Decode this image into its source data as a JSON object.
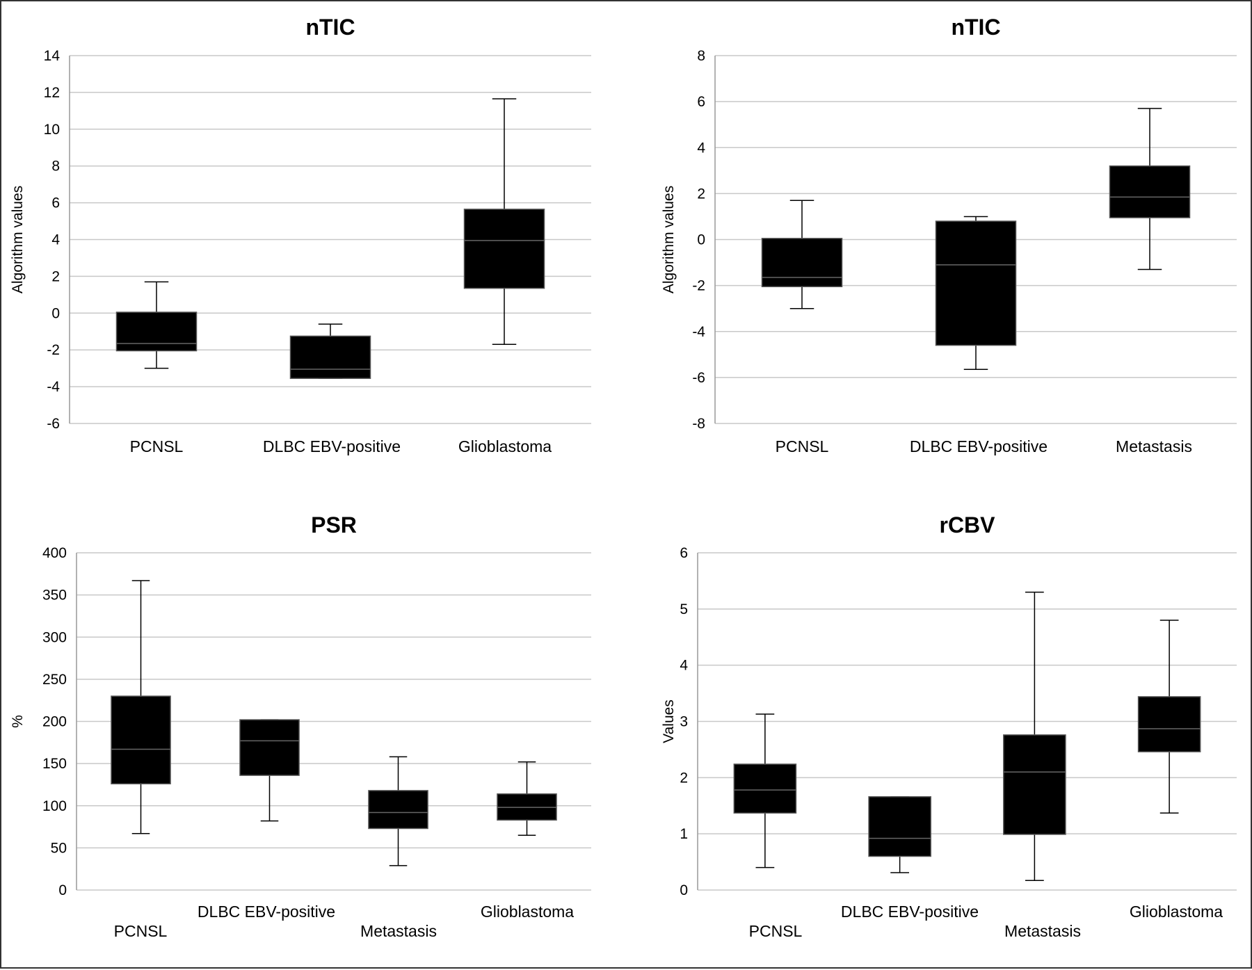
{
  "chart_data": [
    {
      "type": "box",
      "title": "nTIC",
      "ylabel": "Algorithm values",
      "xlabel": "",
      "ylim": [
        -6,
        14
      ],
      "yticks": [
        -6,
        -4,
        -2,
        0,
        2,
        4,
        6,
        8,
        10,
        12,
        14
      ],
      "grid": true,
      "categories": [
        "PCNSL",
        "DLBC EBV-positive",
        "Glioblastoma"
      ],
      "boxes": [
        {
          "min": -3.0,
          "q1": -2.05,
          "median": -1.65,
          "q3": 0.05,
          "max": 1.7
        },
        {
          "min": -3.55,
          "q1": -3.55,
          "median": -3.05,
          "q3": -1.25,
          "max": -0.6
        },
        {
          "min": -1.7,
          "q1": 1.35,
          "median": 3.95,
          "q3": 5.65,
          "max": 11.65
        }
      ]
    },
    {
      "type": "box",
      "title": "nTIC",
      "ylabel": "Algorithm values",
      "xlabel": "",
      "ylim": [
        -8,
        8
      ],
      "yticks": [
        -8,
        -6,
        -4,
        -2,
        0,
        2,
        4,
        6,
        8
      ],
      "grid": true,
      "categories": [
        "PCNSL",
        "DLBC EBV-positive",
        "Metastasis"
      ],
      "boxes": [
        {
          "min": -3.0,
          "q1": -2.05,
          "median": -1.65,
          "q3": 0.05,
          "max": 1.7
        },
        {
          "min": -5.65,
          "q1": -4.6,
          "median": -1.1,
          "q3": 0.8,
          "max": 1.0
        },
        {
          "min": -1.3,
          "q1": 0.95,
          "median": 1.85,
          "q3": 3.2,
          "max": 5.7
        }
      ]
    },
    {
      "type": "box",
      "title": "PSR",
      "ylabel": "%",
      "xlabel": "",
      "ylim": [
        0,
        400
      ],
      "yticks": [
        0,
        50,
        100,
        150,
        200,
        250,
        300,
        350,
        400
      ],
      "grid": true,
      "categories": [
        "PCNSL",
        "DLBC EBV-positive",
        "Metastasis",
        "Glioblastoma"
      ],
      "boxes": [
        {
          "min": 67,
          "q1": 126,
          "median": 167,
          "q3": 230,
          "max": 367
        },
        {
          "min": 82,
          "q1": 136,
          "median": 177,
          "q3": 202,
          "max": 202
        },
        {
          "min": 29,
          "q1": 73,
          "median": 92,
          "q3": 118,
          "max": 158
        },
        {
          "min": 65,
          "q1": 83,
          "median": 98,
          "q3": 114,
          "max": 152
        }
      ]
    },
    {
      "type": "box",
      "title": "rCBV",
      "ylabel": "Values",
      "xlabel": "",
      "ylim": [
        0,
        6
      ],
      "yticks": [
        0,
        1,
        2,
        3,
        4,
        5,
        6
      ],
      "grid": true,
      "categories": [
        "PCNSL",
        "DLBC EBV-positive",
        "Metastasis",
        "Glioblastoma"
      ],
      "boxes": [
        {
          "min": 0.4,
          "q1": 1.37,
          "median": 1.78,
          "q3": 2.24,
          "max": 3.13
        },
        {
          "min": 0.31,
          "q1": 0.6,
          "median": 0.92,
          "q3": 1.66,
          "max": 1.66
        },
        {
          "min": 0.17,
          "q1": 0.99,
          "median": 2.1,
          "q3": 2.76,
          "max": 5.3
        },
        {
          "min": 1.37,
          "q1": 2.46,
          "median": 2.87,
          "q3": 3.44,
          "max": 4.8
        }
      ]
    }
  ]
}
